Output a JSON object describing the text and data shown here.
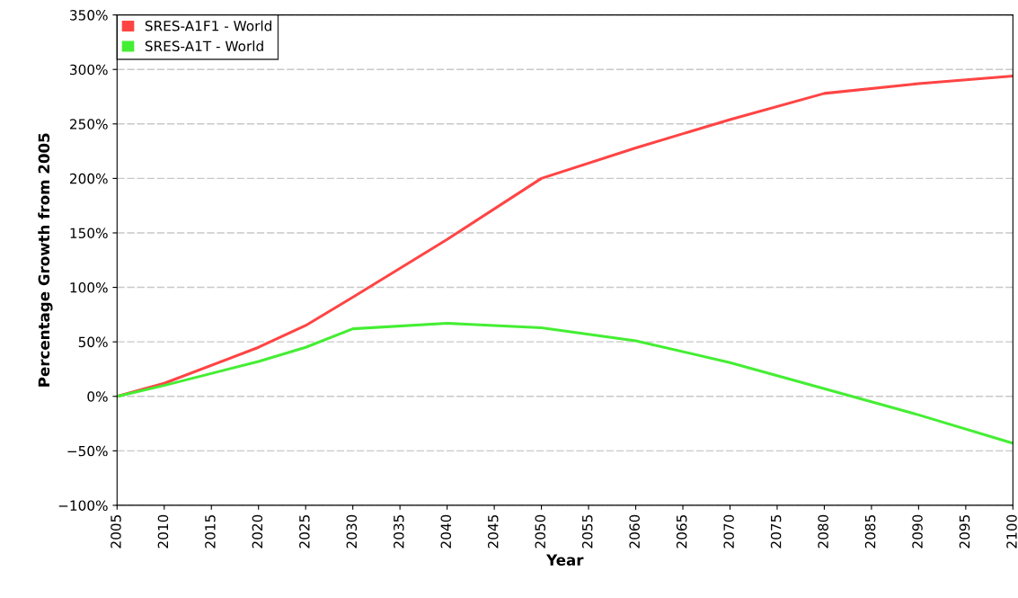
{
  "chart_data": {
    "type": "line",
    "xlabel": "Year",
    "ylabel": "Percentage Growth from 2005",
    "x": [
      2005,
      2010,
      2020,
      2025,
      2030,
      2040,
      2050,
      2060,
      2070,
      2080,
      2090,
      2100
    ],
    "series": [
      {
        "name": "SRES-A1F1 - World",
        "color": "#ff4444",
        "values": [
          0,
          12,
          45,
          65,
          91,
          144,
          200,
          228,
          254,
          278,
          287,
          294
        ]
      },
      {
        "name": "SRES-A1T - World",
        "color": "#44ee33",
        "values": [
          0,
          10,
          32,
          45,
          62,
          67,
          63,
          51,
          31,
          7,
          -17,
          -43
        ]
      }
    ],
    "xlim": [
      2005,
      2100
    ],
    "xticks": [
      2005,
      2010,
      2015,
      2020,
      2025,
      2030,
      2035,
      2040,
      2045,
      2050,
      2055,
      2060,
      2065,
      2070,
      2075,
      2080,
      2085,
      2090,
      2095,
      2100
    ],
    "ylim": [
      -100,
      350
    ],
    "yticks": [
      {
        "value": -100,
        "label": "−100%"
      },
      {
        "value": -50,
        "label": "−50%"
      },
      {
        "value": 0,
        "label": "0%"
      },
      {
        "value": 50,
        "label": "50%"
      },
      {
        "value": 100,
        "label": "100%"
      },
      {
        "value": 150,
        "label": "150%"
      },
      {
        "value": 200,
        "label": "200%"
      },
      {
        "value": 250,
        "label": "250%"
      },
      {
        "value": 300,
        "label": "300%"
      },
      {
        "value": 350,
        "label": "350%"
      }
    ],
    "grid": "y",
    "legend": "top left",
    "marker": "none",
    "line_style": "solid"
  }
}
